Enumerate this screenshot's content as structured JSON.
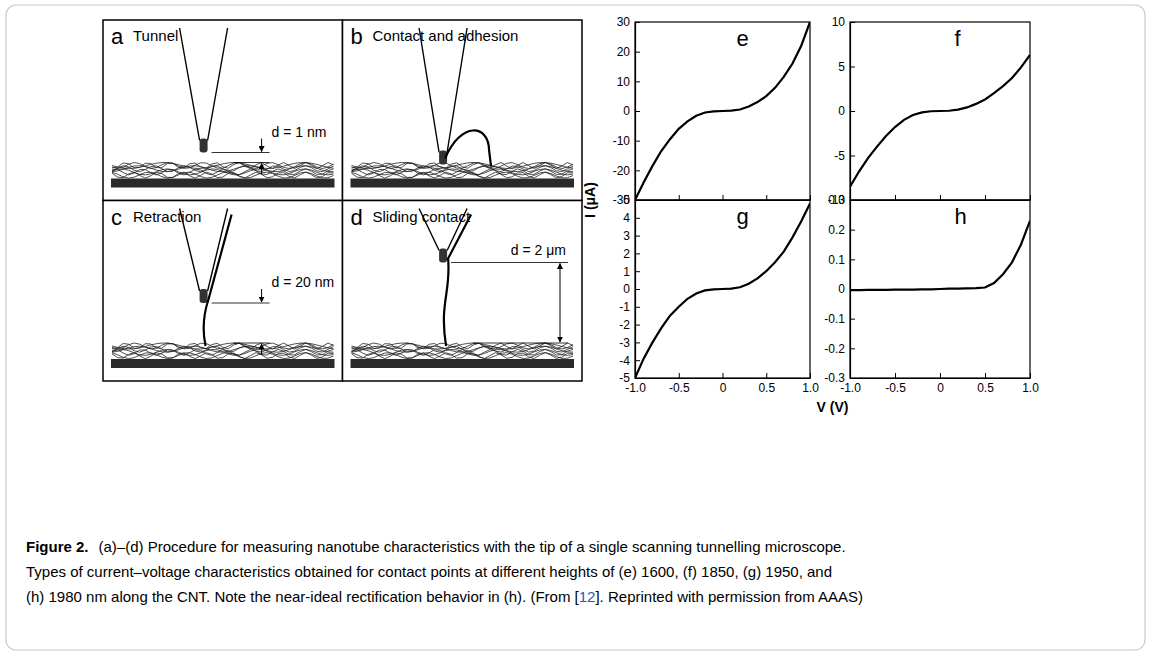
{
  "panels": [
    {
      "letter": "a",
      "title": "Tunnel",
      "distance": "d = 1 nm"
    },
    {
      "letter": "b",
      "title": "Contact and adhesion"
    },
    {
      "letter": "c",
      "title": "Retraction",
      "distance": "d = 20 nm"
    },
    {
      "letter": "d",
      "title": "Sliding contact",
      "distance": "d = 2 μm"
    }
  ],
  "chart_data": [
    {
      "type": "line",
      "title": "e",
      "ylabel": "I (μA)",
      "color": "#000000",
      "tick_labels": "y",
      "x": [
        -1,
        -0.9,
        -0.8,
        -0.7,
        -0.6,
        -0.5,
        -0.4,
        -0.3,
        -0.2,
        -0.1,
        0,
        0.1,
        0.2,
        0.3,
        0.4,
        0.5,
        0.6,
        0.7,
        0.8,
        0.9,
        1
      ],
      "values": [
        -30,
        -24,
        -18.5,
        -13.5,
        -9.5,
        -6,
        -3.5,
        -1.6,
        -0.5,
        -0.1,
        0,
        0.1,
        0.5,
        1.5,
        3,
        5,
        7.8,
        11.5,
        16,
        22,
        30
      ],
      "xlim": [
        -1,
        1
      ],
      "ylim": [
        -30,
        30
      ],
      "xticks": [
        {
          "value": -1,
          "label": "-1.0"
        },
        -0.5,
        0,
        0.5,
        {
          "value": 1,
          "label": "1.0"
        }
      ],
      "yticks": [
        -30,
        -20,
        -10,
        0,
        10,
        20,
        30
      ]
    },
    {
      "type": "line",
      "title": "f",
      "color": "#000000",
      "tick_labels": "y",
      "x": [
        -1,
        -0.9,
        -0.8,
        -0.7,
        -0.6,
        -0.5,
        -0.4,
        -0.3,
        -0.2,
        -0.1,
        0,
        0.1,
        0.2,
        0.3,
        0.4,
        0.5,
        0.6,
        0.7,
        0.8,
        0.9,
        1
      ],
      "values": [
        -8.5,
        -6.8,
        -5.3,
        -4,
        -2.8,
        -1.8,
        -1,
        -0.45,
        -0.15,
        -0.03,
        0,
        0.03,
        0.15,
        0.4,
        0.8,
        1.3,
        2,
        2.8,
        3.7,
        4.9,
        6.3
      ],
      "xlim": [
        -1,
        1
      ],
      "ylim": [
        -10,
        10
      ],
      "xticks": [
        {
          "value": -1,
          "label": "-1.0"
        },
        -0.5,
        0,
        0.5,
        {
          "value": 1,
          "label": "1.0"
        }
      ],
      "yticks": [
        -10,
        -5,
        0,
        5,
        10
      ]
    },
    {
      "type": "line",
      "title": "g",
      "color": "#000000",
      "tick_labels": true,
      "x": [
        -1,
        -0.9,
        -0.8,
        -0.7,
        -0.6,
        -0.5,
        -0.4,
        -0.3,
        -0.2,
        -0.1,
        0,
        0.1,
        0.2,
        0.3,
        0.4,
        0.5,
        0.6,
        0.7,
        0.8,
        0.9,
        1
      ],
      "values": [
        -5,
        -3.9,
        -3,
        -2.2,
        -1.5,
        -1,
        -0.55,
        -0.25,
        -0.08,
        -0.02,
        0,
        0.02,
        0.1,
        0.3,
        0.6,
        1,
        1.5,
        2.1,
        2.9,
        3.8,
        4.8
      ],
      "xlim": [
        -1,
        1
      ],
      "ylim": [
        -5,
        5
      ],
      "xticks": [
        {
          "value": -1,
          "label": "-1.0"
        },
        -0.5,
        0,
        0.5,
        {
          "value": 1,
          "label": "1.0"
        }
      ],
      "yticks": [
        -5,
        -4,
        -3,
        -2,
        -1,
        0,
        1,
        2,
        3,
        4,
        5
      ]
    },
    {
      "type": "line",
      "title": "h",
      "xlabel": "V (V)",
      "color": "#000000",
      "tick_labels": true,
      "x": [
        -1,
        -0.9,
        -0.8,
        -0.7,
        -0.6,
        -0.5,
        -0.4,
        -0.3,
        -0.2,
        -0.1,
        0,
        0.1,
        0.2,
        0.3,
        0.4,
        0.5,
        0.6,
        0.7,
        0.8,
        0.9,
        1
      ],
      "values": [
        -0.004,
        -0.004,
        -0.003,
        -0.003,
        -0.003,
        -0.002,
        -0.002,
        -0.002,
        -0.001,
        -0.001,
        0,
        0.001,
        0.001,
        0.002,
        0.003,
        0.005,
        0.02,
        0.05,
        0.09,
        0.15,
        0.23
      ],
      "xlim": [
        -1,
        1
      ],
      "ylim": [
        -0.3,
        0.3
      ],
      "xticks": [
        {
          "value": -1,
          "label": "-1.0"
        },
        -0.5,
        0,
        0.5,
        {
          "value": 1,
          "label": "1.0"
        }
      ],
      "yticks": [
        -0.3,
        -0.2,
        -0.1,
        0,
        0.1,
        0.2,
        0.3
      ]
    }
  ],
  "caption": {
    "label": "Figure 2.",
    "lines": [
      "(a)–(d) Procedure for measuring nanotube characteristics with the tip of a single scanning tunnelling microscope.",
      "Types of current–voltage characteristics obtained for contact points at different heights of (e) 1600, (f) 1850, (g) 1950, and",
      "(h) 1980 nm along the CNT. Note the near-ideal rectification behavior in (h). (From ["
    ],
    "ref": "12",
    "tail": "]. Reprinted with permission from AAAS)"
  }
}
